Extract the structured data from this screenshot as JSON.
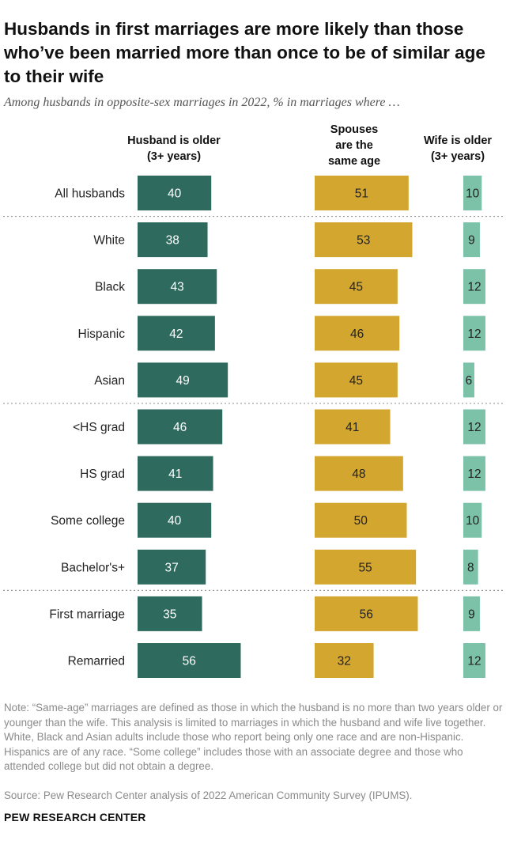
{
  "title": "Husbands in first marriages are more likely than those who’ve been married more than once to be of similar age to their wife",
  "subtitle": "Among husbands in opposite-sex marriages in 2022, % in marriages where …",
  "columns": {
    "husband_older": {
      "line1": "Husband is older",
      "line2": "(3+ years)"
    },
    "same_age": {
      "line1": "Spouses",
      "line2": "are the",
      "line3": "same age"
    },
    "wife_older": {
      "line1": "Wife is older",
      "line2": "(3+ years)"
    }
  },
  "chart_data": {
    "type": "bar",
    "orientation": "horizontal",
    "layout": "small-multiples",
    "title": "Husbands in first marriages are more likely than those who’ve been married more than once to be of similar age to their wife",
    "categories": [
      "All husbands",
      "White",
      "Black",
      "Hispanic",
      "Asian",
      "<HS grad",
      "HS grad",
      "Some college",
      "Bachelor's+",
      "First marriage",
      "Remarried"
    ],
    "groups": [
      [
        "All husbands"
      ],
      [
        "White",
        "Black",
        "Hispanic",
        "Asian"
      ],
      [
        "<HS grad",
        "HS grad",
        "Some college",
        "Bachelor's+"
      ],
      [
        "First marriage",
        "Remarried"
      ]
    ],
    "series": [
      {
        "name": "Husband is older (3+ years)",
        "color": "#2e6b5e",
        "values": [
          40,
          38,
          43,
          42,
          49,
          46,
          41,
          40,
          37,
          35,
          56
        ]
      },
      {
        "name": "Spouses are the same age",
        "color": "#d3a62f",
        "values": [
          51,
          53,
          45,
          46,
          45,
          41,
          48,
          50,
          55,
          56,
          32
        ]
      },
      {
        "name": "Wife is older (3+ years)",
        "color": "#7cc2a8",
        "values": [
          10,
          9,
          12,
          12,
          6,
          12,
          12,
          10,
          8,
          9,
          12
        ]
      }
    ],
    "units": "%",
    "xlim": [
      0,
      100
    ],
    "xlabel": "",
    "ylabel": ""
  },
  "note": "Note: “Same-age” marriages are defined as those in which the husband is no more than two years older or younger than the wife. This analysis is limited to marriages in which the husband and wife live together. White, Black and Asian adults include those who report being only one race and are non-Hispanic. Hispanics are of any race. “Some college” includes those with an associate degree and those who attended college but did not obtain a degree.",
  "source": "Source: Pew Research Center analysis of 2022 American Community Survey (IPUMS).",
  "brand": "PEW RESEARCH CENTER"
}
